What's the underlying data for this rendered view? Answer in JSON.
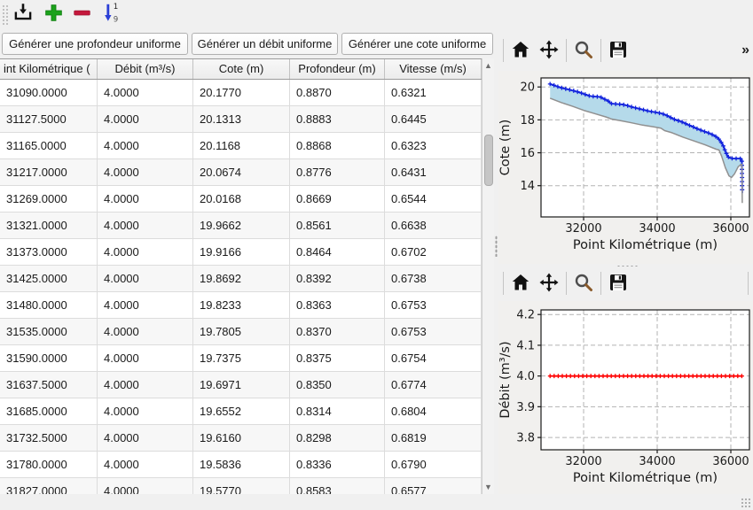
{
  "main_toolbar": {
    "icons": [
      "import-icon",
      "add-icon",
      "remove-icon",
      "renumber-icon"
    ]
  },
  "generator_buttons": {
    "profondeur": "Générer une profondeur uniforme",
    "debit": "Générer un débit uniforme",
    "cote": "Générer une cote uniforme"
  },
  "table": {
    "columns": [
      "int Kilométrique (",
      "Débit (m³/s)",
      "Cote (m)",
      "Profondeur (m)",
      "Vitesse (m/s)"
    ],
    "rows": [
      [
        "31090.0000",
        "4.0000",
        "20.1770",
        "0.8870",
        "0.6321"
      ],
      [
        "31127.5000",
        "4.0000",
        "20.1313",
        "0.8883",
        "0.6445"
      ],
      [
        "31165.0000",
        "4.0000",
        "20.1168",
        "0.8868",
        "0.6323"
      ],
      [
        "31217.0000",
        "4.0000",
        "20.0674",
        "0.8776",
        "0.6431"
      ],
      [
        "31269.0000",
        "4.0000",
        "20.0168",
        "0.8669",
        "0.6544"
      ],
      [
        "31321.0000",
        "4.0000",
        "19.9662",
        "0.8561",
        "0.6638"
      ],
      [
        "31373.0000",
        "4.0000",
        "19.9166",
        "0.8464",
        "0.6702"
      ],
      [
        "31425.0000",
        "4.0000",
        "19.8692",
        "0.8392",
        "0.6738"
      ],
      [
        "31480.0000",
        "4.0000",
        "19.8233",
        "0.8363",
        "0.6753"
      ],
      [
        "31535.0000",
        "4.0000",
        "19.7805",
        "0.8370",
        "0.6753"
      ],
      [
        "31590.0000",
        "4.0000",
        "19.7375",
        "0.8375",
        "0.6754"
      ],
      [
        "31637.5000",
        "4.0000",
        "19.6971",
        "0.8350",
        "0.6774"
      ],
      [
        "31685.0000",
        "4.0000",
        "19.6552",
        "0.8314",
        "0.6804"
      ],
      [
        "31732.5000",
        "4.0000",
        "19.6160",
        "0.8298",
        "0.6819"
      ],
      [
        "31780.0000",
        "4.0000",
        "19.5836",
        "0.8336",
        "0.6790"
      ],
      [
        "31827.0000",
        "4.0000",
        "19.5770",
        "0.8583",
        "0.6577"
      ]
    ]
  },
  "chart_toolbar": {
    "icons": [
      "home-icon",
      "pan-icon",
      "zoom-icon",
      "save-icon"
    ],
    "overflow_label": "»"
  },
  "chart_data": [
    {
      "type": "line",
      "xlabel": "Point Kilométrique (m)",
      "ylabel": "Cote (m)",
      "xlim": [
        30843,
        36506
      ],
      "ylim": [
        12.1,
        20.55
      ],
      "xticks": [
        32000,
        34000,
        36000
      ],
      "xticklabels": [
        "32000",
        "34000",
        "36000"
      ],
      "yticks": [
        14,
        16,
        18,
        20
      ],
      "yticklabels": [
        "14",
        "16",
        "18",
        "20"
      ],
      "grid": true,
      "series": [
        {
          "color": "#1122dd",
          "marker": "+",
          "points": [
            [
              31090,
              20.18
            ],
            [
              31200,
              20.1
            ],
            [
              31320,
              20.0
            ],
            [
              31450,
              19.92
            ],
            [
              31600,
              19.84
            ],
            [
              31750,
              19.76
            ],
            [
              31900,
              19.66
            ],
            [
              32000,
              19.58
            ],
            [
              32100,
              19.5
            ],
            [
              32200,
              19.44
            ],
            [
              32300,
              19.42
            ],
            [
              32450,
              19.4
            ],
            [
              32550,
              19.28
            ],
            [
              32650,
              19.18
            ],
            [
              32750,
              18.99
            ],
            [
              32900,
              18.96
            ],
            [
              33050,
              18.94
            ],
            [
              33200,
              18.86
            ],
            [
              33350,
              18.76
            ],
            [
              33500,
              18.68
            ],
            [
              33650,
              18.6
            ],
            [
              33800,
              18.52
            ],
            [
              33950,
              18.46
            ],
            [
              34100,
              18.4
            ],
            [
              34250,
              18.28
            ],
            [
              34400,
              18.1
            ],
            [
              34500,
              18.0
            ],
            [
              34650,
              17.9
            ],
            [
              34800,
              17.74
            ],
            [
              34950,
              17.6
            ],
            [
              35100,
              17.45
            ],
            [
              35250,
              17.32
            ],
            [
              35400,
              17.2
            ],
            [
              35550,
              17.05
            ],
            [
              35650,
              16.9
            ],
            [
              35720,
              16.7
            ],
            [
              35790,
              16.45
            ],
            [
              35850,
              16.1
            ],
            [
              35900,
              15.85
            ],
            [
              35950,
              15.7
            ],
            [
              36050,
              15.65
            ],
            [
              36150,
              15.65
            ],
            [
              36250,
              15.65
            ],
            [
              36300,
              15.63
            ],
            [
              36310,
              13.55
            ]
          ]
        },
        {
          "color": "#909090",
          "marker": null,
          "points": [
            [
              31090,
              19.32
            ],
            [
              31400,
              19.05
            ],
            [
              31700,
              18.82
            ],
            [
              32000,
              18.58
            ],
            [
              32300,
              18.38
            ],
            [
              32600,
              18.18
            ],
            [
              32700,
              18.1
            ],
            [
              32750,
              18.05
            ],
            [
              33000,
              17.95
            ],
            [
              33300,
              17.82
            ],
            [
              33600,
              17.68
            ],
            [
              33900,
              17.58
            ],
            [
              34100,
              17.5
            ],
            [
              34200,
              17.35
            ],
            [
              34400,
              17.22
            ],
            [
              34700,
              16.95
            ],
            [
              35000,
              16.72
            ],
            [
              35300,
              16.48
            ],
            [
              35600,
              16.22
            ],
            [
              35680,
              16.17
            ],
            [
              35750,
              15.8
            ],
            [
              35850,
              15.1
            ],
            [
              35950,
              14.6
            ],
            [
              36020,
              14.5
            ],
            [
              36100,
              14.72
            ],
            [
              36200,
              15.15
            ],
            [
              36270,
              15.28
            ],
            [
              36300,
              15.3
            ],
            [
              36310,
              12.95
            ]
          ]
        }
      ],
      "fill_between": {
        "upper": 0,
        "lower": 1,
        "color": "#b5daea"
      }
    },
    {
      "type": "line",
      "xlabel": "Point Kilométrique (m)",
      "ylabel": "Débit (m³/s)",
      "xlim": [
        30843,
        36506
      ],
      "ylim": [
        3.76,
        4.215
      ],
      "xticks": [
        32000,
        34000,
        36000
      ],
      "xticklabels": [
        "32000",
        "34000",
        "36000"
      ],
      "yticks": [
        3.8,
        3.9,
        4.0,
        4.1,
        4.2
      ],
      "yticklabels": [
        "3.8",
        "3.9",
        "4.0",
        "4.1",
        "4.2"
      ],
      "grid": true,
      "series": [
        {
          "color": "#ff0000",
          "marker": "+",
          "points": [
            [
              31090,
              4.0
            ],
            [
              36300,
              4.0
            ]
          ]
        }
      ]
    }
  ]
}
